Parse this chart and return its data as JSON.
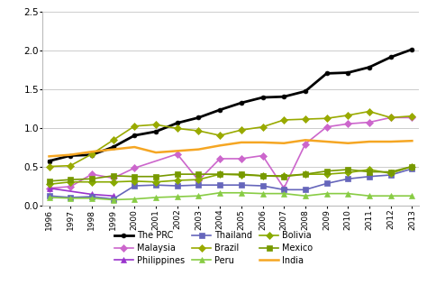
{
  "years": [
    1996,
    1997,
    1998,
    1999,
    2000,
    2001,
    2002,
    2003,
    2004,
    2005,
    2006,
    2007,
    2008,
    2009,
    2010,
    2011,
    2012,
    2013
  ],
  "series": [
    {
      "name": "The PRC",
      "color": "#000000",
      "marker": "o",
      "markersize": 3.5,
      "linewidth": 2.0,
      "linestyle": "-",
      "values": [
        0.57,
        0.64,
        0.65,
        0.75,
        0.9,
        0.95,
        1.06,
        1.13,
        1.23,
        1.32,
        1.39,
        1.4,
        1.47,
        1.7,
        1.71,
        1.78,
        1.91,
        2.01
      ]
    },
    {
      "name": "Malaysia",
      "color": "#cc66cc",
      "marker": "D",
      "markersize": 4,
      "linewidth": 1.2,
      "linestyle": "-",
      "values": [
        0.22,
        0.24,
        0.4,
        0.35,
        0.48,
        null,
        0.66,
        0.32,
        0.6,
        0.6,
        0.64,
        0.22,
        0.79,
        1.01,
        1.05,
        1.07,
        1.13,
        1.13
      ]
    },
    {
      "name": "Philippines",
      "color": "#9933cc",
      "marker": "^",
      "markersize": 4.5,
      "linewidth": 1.2,
      "linestyle": "-",
      "values": [
        0.22,
        null,
        0.14,
        0.12,
        null,
        null,
        null,
        null,
        null,
        null,
        null,
        null,
        null,
        null,
        null,
        null,
        null,
        null
      ]
    },
    {
      "name": "Thailand",
      "color": "#6666bb",
      "marker": "s",
      "markersize": 4,
      "linewidth": 1.2,
      "linestyle": "-",
      "values": [
        0.12,
        0.1,
        0.11,
        0.08,
        0.25,
        0.26,
        0.25,
        0.26,
        0.26,
        0.26,
        0.25,
        0.2,
        0.2,
        0.28,
        0.34,
        0.37,
        0.39,
        0.47
      ]
    },
    {
      "name": "Brazil",
      "color": "#99aa00",
      "marker": "D",
      "markersize": 4,
      "linewidth": 1.2,
      "linestyle": "-",
      "values": [
        0.5,
        0.51,
        0.66,
        0.84,
        1.02,
        1.04,
        0.99,
        0.96,
        0.9,
        0.97,
        1.01,
        1.1,
        1.11,
        1.12,
        1.16,
        1.21,
        1.13,
        1.15
      ]
    },
    {
      "name": "Peru",
      "color": "#88cc44",
      "marker": "^",
      "markersize": 4.5,
      "linewidth": 1.2,
      "linestyle": "-",
      "values": [
        0.1,
        0.09,
        0.09,
        0.07,
        0.08,
        0.1,
        0.11,
        0.12,
        0.16,
        0.16,
        0.15,
        0.15,
        0.12,
        0.15,
        0.15,
        0.12,
        0.12,
        0.12
      ]
    },
    {
      "name": "Bolivia",
      "color": "#88aa00",
      "marker": "D",
      "markersize": 4,
      "linewidth": 1.2,
      "linestyle": "-",
      "values": [
        0.27,
        0.3,
        0.3,
        0.3,
        0.31,
        0.3,
        0.32,
        0.33,
        0.4,
        0.39,
        0.38,
        0.38,
        0.4,
        0.4,
        0.42,
        0.46,
        0.41,
        0.5
      ]
    },
    {
      "name": "Mexico",
      "color": "#779900",
      "marker": "s",
      "markersize": 4,
      "linewidth": 1.2,
      "linestyle": "-",
      "values": [
        0.31,
        0.33,
        0.34,
        0.38,
        0.37,
        0.37,
        0.4,
        0.4,
        0.4,
        0.4,
        0.38,
        0.37,
        0.4,
        0.44,
        0.46,
        0.43,
        0.43,
        0.5
      ]
    },
    {
      "name": "India",
      "color": "#f5a623",
      "marker": null,
      "markersize": 0,
      "linewidth": 1.8,
      "linestyle": "-",
      "values": [
        0.63,
        0.65,
        0.69,
        0.72,
        0.75,
        0.68,
        0.7,
        0.72,
        0.77,
        0.81,
        0.81,
        0.8,
        0.84,
        0.82,
        0.8,
        0.82,
        0.82,
        0.83
      ]
    }
  ],
  "ylim": [
    0.0,
    2.5
  ],
  "yticks": [
    0.0,
    0.5,
    1.0,
    1.5,
    2.0,
    2.5
  ],
  "background_color": "#ffffff",
  "grid_color": "#cccccc",
  "legend_order": [
    "The PRC",
    "Malaysia",
    "Philippines",
    "Thailand",
    "Brazil",
    "Peru",
    "Bolivia",
    "Mexico",
    "India"
  ]
}
